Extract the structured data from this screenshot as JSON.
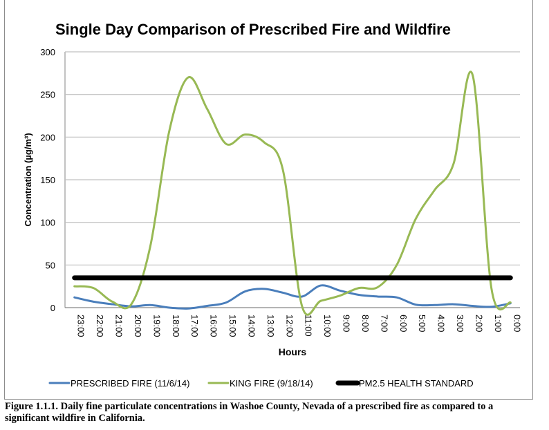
{
  "chart_data": {
    "type": "line",
    "title": "Single Day Comparison of Prescribed Fire and Wildfire",
    "xlabel": "Hours",
    "ylabel": "Concentration (µg/m³)",
    "ylim": [
      0,
      300
    ],
    "yticks": [
      0,
      50,
      100,
      150,
      200,
      250,
      300
    ],
    "grid": true,
    "legend": "bottom",
    "categories": [
      "23:00",
      "22:00",
      "21:00",
      "20:00",
      "19:00",
      "18:00",
      "17:00",
      "16:00",
      "15:00",
      "14:00",
      "13:00",
      "12:00",
      "11:00",
      "10:00",
      "9:00",
      "8:00",
      "7:00",
      "6:00",
      "5:00",
      "4:00",
      "3:00",
      "2:00",
      "1:00",
      "0:00"
    ],
    "series": [
      {
        "name": "PRESCRIBED FIRE (11/6/14)",
        "color": "#4a7ebb",
        "smooth": true,
        "values": [
          12,
          7,
          4,
          1.5,
          3,
          0,
          -1,
          2,
          6,
          19,
          22,
          17.5,
          13,
          26,
          20,
          15,
          13,
          12,
          3.5,
          3,
          4,
          2,
          1,
          5
        ]
      },
      {
        "name": "KING FIRE (9/18/14)",
        "color": "#98b954",
        "smooth": true,
        "values": [
          25,
          23,
          7,
          4,
          72,
          207,
          270,
          233,
          192,
          203,
          194,
          161,
          2,
          8,
          14,
          23,
          24,
          50,
          104,
          138,
          169,
          273,
          22,
          6
        ]
      },
      {
        "name": "PM2.5 HEALTH STANDARD",
        "color": "#000000",
        "smooth": false,
        "values": [
          35,
          35,
          35,
          35,
          35,
          35,
          35,
          35,
          35,
          35,
          35,
          35,
          35,
          35,
          35,
          35,
          35,
          35,
          35,
          35,
          35,
          35,
          35,
          35
        ]
      }
    ]
  },
  "caption": "Figure 1.1.1. Daily fine particulate concentrations in Washoe County, Nevada of a prescribed fire as compared to a significant wildfire in California."
}
